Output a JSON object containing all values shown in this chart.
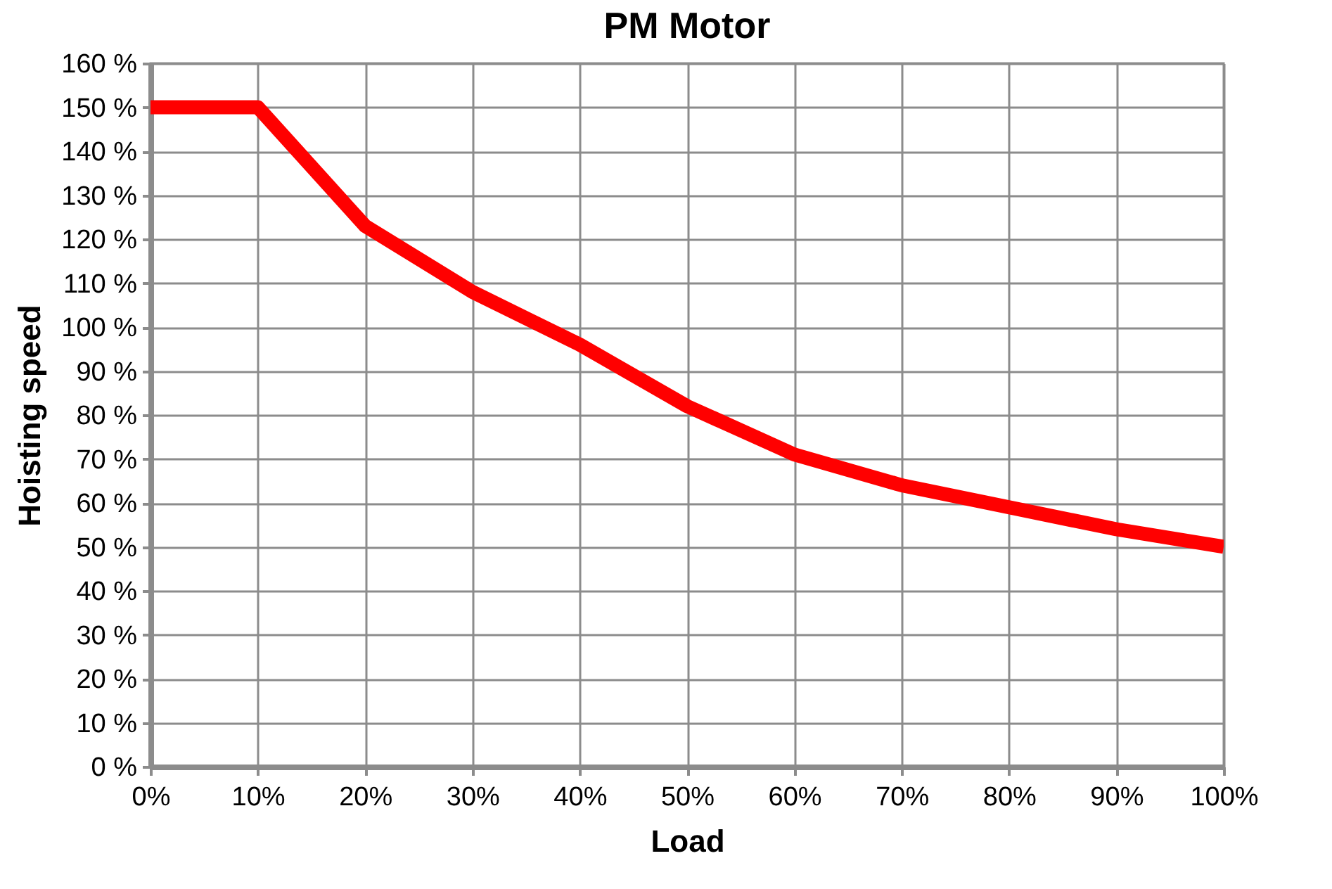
{
  "chart_data": {
    "type": "line",
    "title": "PM Motor",
    "xlabel": "Load",
    "ylabel": "Hoisting speed",
    "x": [
      0,
      10,
      20,
      30,
      40,
      50,
      60,
      70,
      80,
      90,
      100
    ],
    "series": [
      {
        "color": "#ff0000",
        "values": [
          150,
          150,
          123,
          108,
          96,
          82,
          71,
          64,
          59,
          54,
          50
        ]
      }
    ],
    "xlim": [
      0,
      100
    ],
    "xticks": [
      {
        "value": 0,
        "label": "0%"
      },
      {
        "value": 10,
        "label": "10%"
      },
      {
        "value": 20,
        "label": "20%"
      },
      {
        "value": 30,
        "label": "30%"
      },
      {
        "value": 40,
        "label": "40%"
      },
      {
        "value": 50,
        "label": "50%"
      },
      {
        "value": 60,
        "label": "60%"
      },
      {
        "value": 70,
        "label": "70%"
      },
      {
        "value": 80,
        "label": "80%"
      },
      {
        "value": 90,
        "label": "90%"
      },
      {
        "value": 100,
        "label": "100%"
      }
    ],
    "ylim": [
      0,
      160
    ],
    "yticks": [
      {
        "value": 0,
        "label": "0 %"
      },
      {
        "value": 10,
        "label": "10 %"
      },
      {
        "value": 20,
        "label": "20 %"
      },
      {
        "value": 30,
        "label": "30 %"
      },
      {
        "value": 40,
        "label": "40 %"
      },
      {
        "value": 50,
        "label": "50 %"
      },
      {
        "value": 60,
        "label": "60 %"
      },
      {
        "value": 70,
        "label": "70 %"
      },
      {
        "value": 80,
        "label": "80 %"
      },
      {
        "value": 90,
        "label": "90 %"
      },
      {
        "value": 100,
        "label": "100 %"
      },
      {
        "value": 110,
        "label": "110 %"
      },
      {
        "value": 120,
        "label": "120 %"
      },
      {
        "value": 130,
        "label": "130 %"
      },
      {
        "value": 140,
        "label": "140 %"
      },
      {
        "value": 150,
        "label": "150 %"
      },
      {
        "value": 160,
        "label": "160 %"
      }
    ],
    "grid": true,
    "marker": "none",
    "line_style": "solid"
  }
}
